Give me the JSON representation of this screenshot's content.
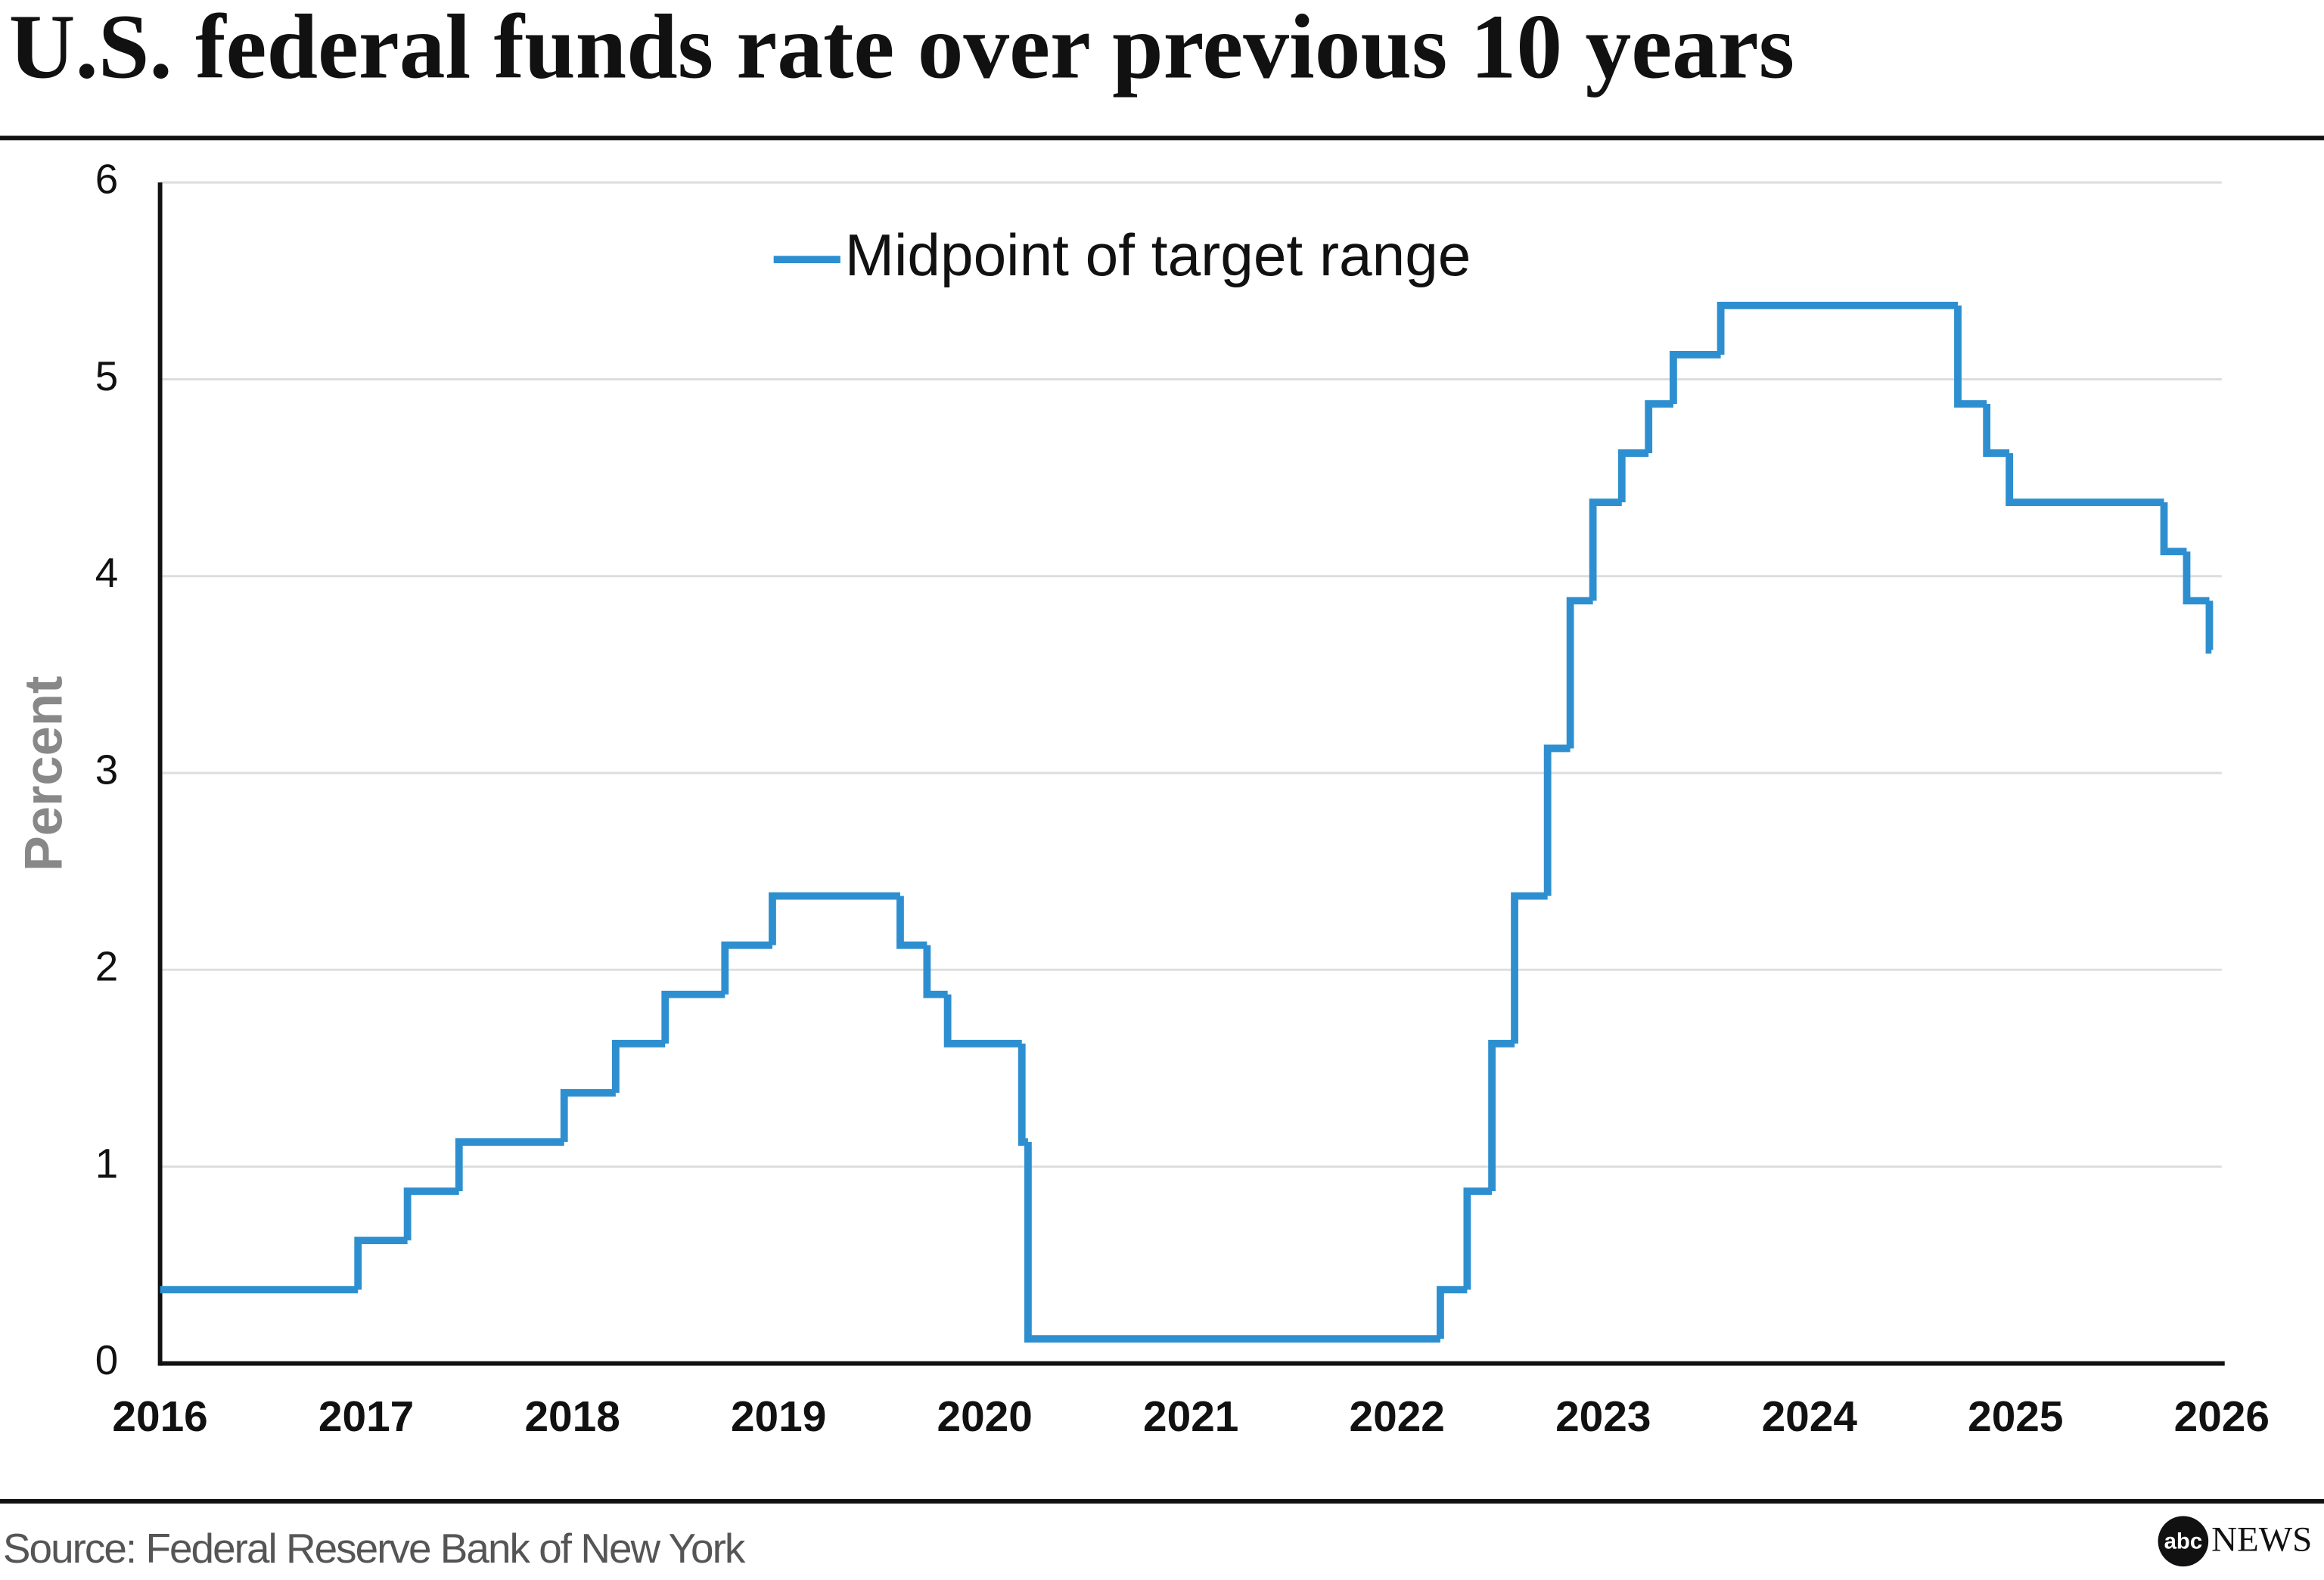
{
  "chart_data": {
    "type": "line",
    "step": "post",
    "title": "U.S. federal funds rate over previous 10 years",
    "ylabel": "Percent",
    "source": "Source: Federal Reserve Bank of New York",
    "logo": {
      "mark": "abc",
      "text": "NEWS"
    },
    "xlim": [
      2016,
      2026
    ],
    "xticks": [
      2016,
      2017,
      2018,
      2019,
      2020,
      2021,
      2022,
      2023,
      2024,
      2025,
      2026
    ],
    "ylim": [
      0,
      6
    ],
    "yticks": [
      0,
      1,
      2,
      3,
      4,
      5,
      6
    ],
    "grid": true,
    "legend": "top",
    "x": [
      2016,
      2016.96,
      2017.2,
      2017.45,
      2017.96,
      2018.21,
      2018.45,
      2018.74,
      2018.97,
      2019.59,
      2019.72,
      2019.82,
      2020.18,
      2020.21,
      2022.21,
      2022.34,
      2022.46,
      2022.57,
      2022.73,
      2022.84,
      2022.95,
      2023.09,
      2023.22,
      2023.34,
      2023.57,
      2024.72,
      2024.86,
      2024.97,
      2025.72,
      2025.83,
      2025.94,
      2025.95
    ],
    "series": [
      {
        "name": "Midpoint of target range",
        "color": "#2e8fd0",
        "values": [
          0.375,
          0.625,
          0.875,
          1.125,
          1.375,
          1.625,
          1.875,
          2.125,
          2.375,
          2.125,
          1.875,
          1.625,
          1.125,
          0.125,
          0.375,
          0.875,
          1.625,
          2.375,
          3.125,
          3.875,
          4.375,
          4.625,
          4.875,
          5.125,
          5.375,
          4.875,
          4.625,
          4.375,
          4.125,
          3.875,
          3.625,
          3.625
        ]
      }
    ]
  }
}
